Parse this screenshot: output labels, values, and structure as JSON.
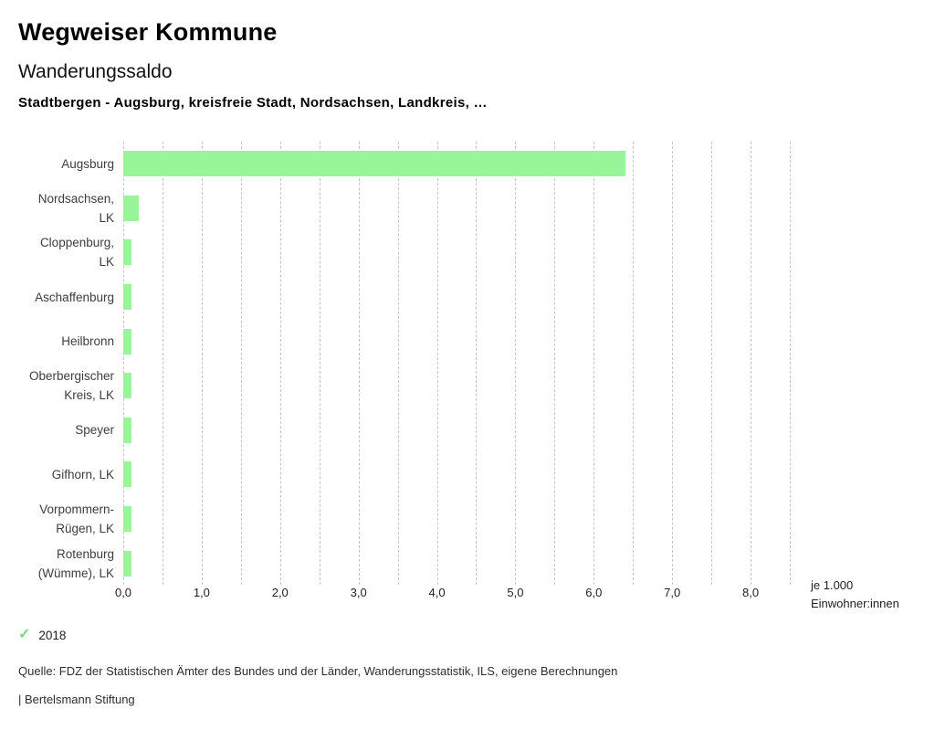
{
  "header": {
    "app_title": "Wegweiser Kommune",
    "chart_title": "Wanderungssaldo",
    "chart_subtitle": "Stadtbergen - Augsburg, kreisfreie Stadt, Nordsachsen, Landkreis, …"
  },
  "chart_data": {
    "type": "bar",
    "orientation": "horizontal",
    "title": "Wanderungssaldo",
    "subtitle": "Stadtbergen - Augsburg, kreisfreie Stadt, Nordsachsen, Landkreis, …",
    "categories": [
      "Augsburg",
      "Nordsachsen, LK",
      "Cloppenburg, LK",
      "Aschaffenburg",
      "Heilbronn",
      "Oberbergischer Kreis, LK",
      "Speyer",
      "Gifhorn, LK",
      "Vorpommern-Rügen, LK",
      "Rotenburg (Wümme), LK"
    ],
    "label_lines": [
      [
        "Augsburg"
      ],
      [
        "Nordsachsen,",
        "LK"
      ],
      [
        "Cloppenburg,",
        "LK"
      ],
      [
        "Aschaffenburg"
      ],
      [
        "Heilbronn"
      ],
      [
        "Oberbergischer",
        "Kreis, LK"
      ],
      [
        "Speyer"
      ],
      [
        "Gifhorn, LK"
      ],
      [
        "Vorpommern-",
        "Rügen, LK"
      ],
      [
        "Rotenburg",
        "(Wümme), LK"
      ]
    ],
    "series": [
      {
        "name": "2018",
        "values": [
          6.4,
          0.2,
          0.1,
          0.1,
          0.1,
          0.1,
          0.1,
          0.1,
          0.1,
          0.1
        ]
      }
    ],
    "xlabel": "je 1.000 Einwohner:innen",
    "xlabel_lines": [
      "je 1.000",
      "Einwohner:innen"
    ],
    "ylabel": "",
    "xlim": [
      0,
      8.5
    ],
    "grid_interval": 0.5,
    "grid_on": true,
    "x_tick_values": [
      0,
      1,
      2,
      3,
      4,
      5,
      6,
      7,
      8
    ],
    "x_tick_labels": [
      "0,0",
      "1,0",
      "2,0",
      "3,0",
      "4,0",
      "5,0",
      "6,0",
      "7,0",
      "8,0"
    ],
    "legend_position": "bottom-left",
    "bar_color": "#98f598"
  },
  "legend": {
    "check_icon": "✓",
    "check_color": "#7bd87b",
    "year_label": "2018"
  },
  "footer": {
    "source": "Quelle: FDZ der Statistischen Ämter des Bundes und der Länder, Wanderungsstatistik, ILS, eigene Berechnungen",
    "attribution": "| Bertelsmann Stiftung"
  }
}
